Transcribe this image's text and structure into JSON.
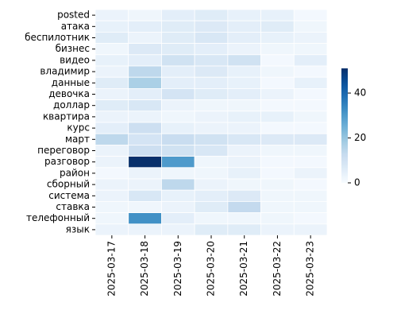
{
  "chart_data": {
    "type": "heatmap",
    "x": [
      "2025-03-17",
      "2025-03-18",
      "2025-03-19",
      "2025-03-20",
      "2025-03-21",
      "2025-03-22",
      "2025-03-23"
    ],
    "y": [
      "posted",
      "атака",
      "беспилотник",
      "бизнес",
      "видео",
      "владимир",
      "данные",
      "девочка",
      "доллар",
      "квартира",
      "курс",
      "март",
      "переговор",
      "разговор",
      "район",
      "сборный",
      "система",
      "ставка",
      "телефонный",
      "язык"
    ],
    "values": [
      [
        3,
        2,
        5,
        6,
        4,
        4,
        1
      ],
      [
        4,
        5,
        6,
        7,
        5,
        6,
        2
      ],
      [
        6,
        3,
        6,
        8,
        5,
        4,
        3
      ],
      [
        2,
        7,
        6,
        5,
        3,
        2,
        2
      ],
      [
        4,
        5,
        10,
        8,
        10,
        1,
        5
      ],
      [
        3,
        14,
        5,
        7,
        4,
        2,
        1
      ],
      [
        6,
        17,
        5,
        5,
        4,
        1,
        4
      ],
      [
        3,
        5,
        9,
        6,
        5,
        3,
        1
      ],
      [
        6,
        8,
        3,
        2,
        2,
        1,
        1
      ],
      [
        3,
        3,
        2,
        3,
        4,
        4,
        2
      ],
      [
        5,
        11,
        4,
        3,
        3,
        1,
        1
      ],
      [
        14,
        9,
        12,
        10,
        8,
        7,
        7
      ],
      [
        3,
        11,
        10,
        8,
        3,
        2,
        2
      ],
      [
        3,
        51,
        30,
        2,
        3,
        1,
        1
      ],
      [
        1,
        3,
        2,
        2,
        4,
        1,
        3
      ],
      [
        3,
        3,
        14,
        3,
        2,
        2,
        1
      ],
      [
        3,
        8,
        4,
        5,
        7,
        2,
        2
      ],
      [
        2,
        2,
        3,
        6,
        13,
        2,
        2
      ],
      [
        2,
        32,
        5,
        2,
        2,
        2,
        1
      ],
      [
        3,
        3,
        3,
        6,
        6,
        3,
        3
      ]
    ],
    "colormap": [
      "#f7fbff",
      "#deebf7",
      "#c6dbef",
      "#9ecae1",
      "#6baed6",
      "#4292c6",
      "#2171b5",
      "#08519c",
      "#08306b"
    ],
    "clim": [
      0,
      51
    ],
    "cticks": [
      0,
      20,
      40
    ]
  }
}
